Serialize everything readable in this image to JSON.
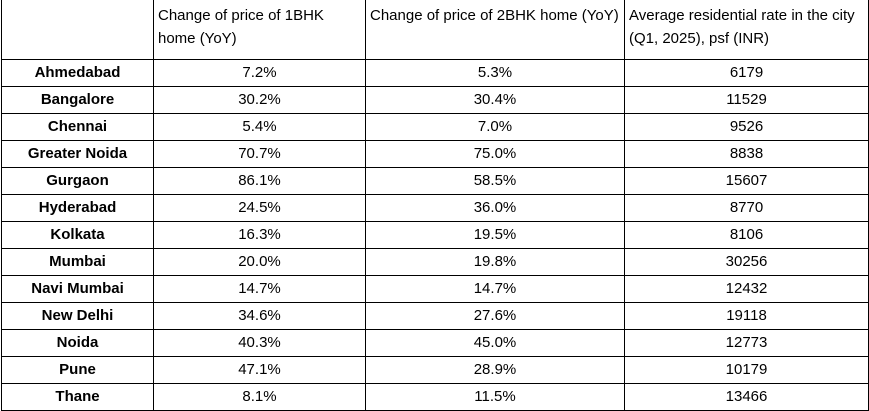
{
  "table": {
    "headers": [
      "",
      "Change of price of 1BHK home (YoY)",
      "Change of price of 2BHK home (YoY)",
      "Average residential rate in the city (Q1, 2025), psf (INR)"
    ],
    "rows": [
      {
        "city": "Ahmedabad",
        "bhk1": "7.2%",
        "bhk2": "5.3%",
        "rate": "6179"
      },
      {
        "city": "Bangalore",
        "bhk1": "30.2%",
        "bhk2": "30.4%",
        "rate": "11529"
      },
      {
        "city": "Chennai",
        "bhk1": "5.4%",
        "bhk2": "7.0%",
        "rate": "9526"
      },
      {
        "city": "Greater Noida",
        "bhk1": "70.7%",
        "bhk2": "75.0%",
        "rate": "8838"
      },
      {
        "city": "Gurgaon",
        "bhk1": "86.1%",
        "bhk2": "58.5%",
        "rate": "15607"
      },
      {
        "city": "Hyderabad",
        "bhk1": "24.5%",
        "bhk2": "36.0%",
        "rate": "8770"
      },
      {
        "city": "Kolkata",
        "bhk1": "16.3%",
        "bhk2": "19.5%",
        "rate": "8106"
      },
      {
        "city": "Mumbai",
        "bhk1": "20.0%",
        "bhk2": "19.8%",
        "rate": "30256"
      },
      {
        "city": "Navi Mumbai",
        "bhk1": "14.7%",
        "bhk2": "14.7%",
        "rate": "12432"
      },
      {
        "city": "New Delhi",
        "bhk1": "34.6%",
        "bhk2": "27.6%",
        "rate": "19118"
      },
      {
        "city": "Noida",
        "bhk1": "40.3%",
        "bhk2": "45.0%",
        "rate": "12773"
      },
      {
        "city": "Pune",
        "bhk1": "47.1%",
        "bhk2": "28.9%",
        "rate": "10179"
      },
      {
        "city": "Thane",
        "bhk1": "8.1%",
        "bhk2": "11.5%",
        "rate": "13466"
      }
    ]
  }
}
